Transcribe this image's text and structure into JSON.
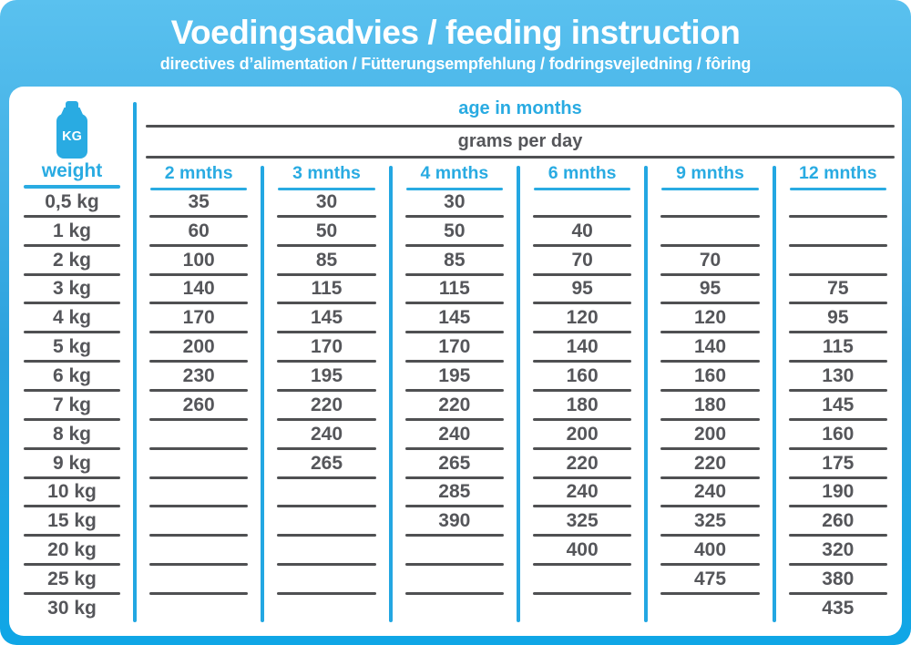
{
  "header": {
    "title": "Voedingsadvies / feeding instruction",
    "subtitle": "directives d’alimentation / Fütterungsempfehlung / fodringsvejledning / fôring"
  },
  "table": {
    "age_header": "age in months",
    "grams_header": "grams per day",
    "weight_icon_label": "KG",
    "weight_header": "weight"
  },
  "colors": {
    "accent_blue": "#29abe2",
    "header_gradient_top": "#5ac1ef",
    "header_gradient_bottom": "#0fa6e6",
    "text_gray": "#55565a",
    "line_gray": "#4f5052"
  },
  "chart_data": {
    "type": "table",
    "title": "Voedingsadvies / feeding instruction",
    "subtitle": "directives d’alimentation / Fütterungsempfehlung / fodringsvejledning / fôring",
    "group_header": "age in months",
    "unit_header": "grams per day",
    "row_label_header": "weight",
    "columns": [
      "2 mnths",
      "3 mnths",
      "4 mnths",
      "6 mnths",
      "9 mnths",
      "12 mnths"
    ],
    "rows": [
      {
        "weight": "0,5 kg",
        "values": [
          35,
          30,
          30,
          null,
          null,
          null
        ]
      },
      {
        "weight": "1 kg",
        "values": [
          60,
          50,
          50,
          40,
          null,
          null
        ]
      },
      {
        "weight": "2 kg",
        "values": [
          100,
          85,
          85,
          70,
          70,
          null
        ]
      },
      {
        "weight": "3 kg",
        "values": [
          140,
          115,
          115,
          95,
          95,
          75
        ]
      },
      {
        "weight": "4 kg",
        "values": [
          170,
          145,
          145,
          120,
          120,
          95
        ]
      },
      {
        "weight": "5 kg",
        "values": [
          200,
          170,
          170,
          140,
          140,
          115
        ]
      },
      {
        "weight": "6 kg",
        "values": [
          230,
          195,
          195,
          160,
          160,
          130
        ]
      },
      {
        "weight": "7 kg",
        "values": [
          260,
          220,
          220,
          180,
          180,
          145
        ]
      },
      {
        "weight": "8 kg",
        "values": [
          null,
          240,
          240,
          200,
          200,
          160
        ]
      },
      {
        "weight": "9 kg",
        "values": [
          null,
          265,
          265,
          220,
          220,
          175
        ]
      },
      {
        "weight": "10 kg",
        "values": [
          null,
          null,
          285,
          240,
          240,
          190
        ]
      },
      {
        "weight": "15 kg",
        "values": [
          null,
          null,
          390,
          325,
          325,
          260
        ]
      },
      {
        "weight": "20 kg",
        "values": [
          null,
          null,
          null,
          400,
          400,
          320
        ]
      },
      {
        "weight": "25 kg",
        "values": [
          null,
          null,
          null,
          null,
          475,
          380
        ]
      },
      {
        "weight": "30 kg",
        "values": [
          null,
          null,
          null,
          null,
          null,
          435
        ]
      }
    ]
  }
}
